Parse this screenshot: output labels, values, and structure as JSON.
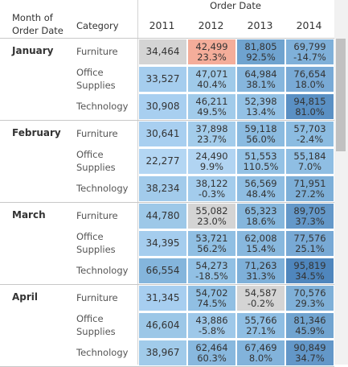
{
  "header": {
    "group_title": "Order Date",
    "month_col": "Month of Order Date",
    "category_col": "Category",
    "years": [
      "2011",
      "2012",
      "2013",
      "2014"
    ]
  },
  "categories": [
    "Furniture",
    "Office Supplies",
    "Technology"
  ],
  "months": [
    {
      "name": "January",
      "rows": [
        [
          {
            "v": "34,464",
            "c": "#d4d4d4"
          },
          {
            "v": "42,499",
            "p": "23.3%",
            "c": "#f4ad9a"
          },
          {
            "v": "81,805",
            "p": "92.5%",
            "c": "#6fa3cf"
          },
          {
            "v": "69,799",
            "p": "-14.7%",
            "c": "#7fb0d9"
          }
        ],
        [
          {
            "v": "33,527",
            "c": "#a5cdee"
          },
          {
            "v": "47,071",
            "p": "40.4%",
            "c": "#9fcae9"
          },
          {
            "v": "64,984",
            "p": "38.1%",
            "c": "#86b6dd"
          },
          {
            "v": "76,654",
            "p": "18.0%",
            "c": "#79aad6"
          }
        ],
        [
          {
            "v": "30,908",
            "c": "#a8cff0"
          },
          {
            "v": "46,211",
            "p": "49.5%",
            "c": "#a1cbea"
          },
          {
            "v": "52,398",
            "p": "13.4%",
            "c": "#93c1e5"
          },
          {
            "v": "94,815",
            "p": "81.0%",
            "c": "#5a90c4"
          }
        ]
      ]
    },
    {
      "name": "February",
      "rows": [
        [
          {
            "v": "30,641",
            "c": "#a8cff0"
          },
          {
            "v": "37,898",
            "p": "23.7%",
            "c": "#a3cceb"
          },
          {
            "v": "59,118",
            "p": "56.0%",
            "c": "#8bbbe0"
          },
          {
            "v": "57,703",
            "p": "-2.4%",
            "c": "#8cbce1"
          }
        ],
        [
          {
            "v": "22,277",
            "c": "#b3d6f3"
          },
          {
            "v": "24,490",
            "p": "9.9%",
            "c": "#b1d4f2"
          },
          {
            "v": "51,553",
            "p": "110.5%",
            "c": "#94c2e5"
          },
          {
            "v": "55,184",
            "p": "7.0%",
            "c": "#8fbee3"
          }
        ],
        [
          {
            "v": "38,234",
            "c": "#a2cbeb"
          },
          {
            "v": "38,122",
            "p": "-0.3%",
            "c": "#a3ccec"
          },
          {
            "v": "56,569",
            "p": "48.4%",
            "c": "#8ebde2"
          },
          {
            "v": "71,951",
            "p": "27.2%",
            "c": "#7dafd8"
          }
        ]
      ]
    },
    {
      "name": "March",
      "rows": [
        [
          {
            "v": "44,780",
            "c": "#9dc8e8"
          },
          {
            "v": "55,082",
            "p": "23.0%",
            "c": "#d4d4d4"
          },
          {
            "v": "65,323",
            "p": "18.6%",
            "c": "#85b6dc"
          },
          {
            "v": "89,705",
            "p": "37.3%",
            "c": "#6498c9"
          }
        ],
        [
          {
            "v": "34,395",
            "c": "#a5cdee"
          },
          {
            "v": "53,721",
            "p": "56.2%",
            "c": "#90bfe3"
          },
          {
            "v": "62,008",
            "p": "15.4%",
            "c": "#88b8de"
          },
          {
            "v": "77,576",
            "p": "25.1%",
            "c": "#78a9d5"
          }
        ],
        [
          {
            "v": "66,554",
            "c": "#84b5dc"
          },
          {
            "v": "54,273",
            "p": "-18.5%",
            "c": "#91c0e4"
          },
          {
            "v": "71,263",
            "p": "31.3%",
            "c": "#7eb0d9"
          },
          {
            "v": "95,819",
            "p": "34.5%",
            "c": "#4f86bd"
          }
        ]
      ]
    },
    {
      "name": "April",
      "rows": [
        [
          {
            "v": "31,345",
            "c": "#a7cef0"
          },
          {
            "v": "54,702",
            "p": "74.5%",
            "c": "#90bfe3"
          },
          {
            "v": "54,587",
            "p": "-0.2%",
            "c": "#d4d4d4"
          },
          {
            "v": "70,576",
            "p": "29.3%",
            "c": "#7fb0d8"
          }
        ],
        [
          {
            "v": "46,604",
            "c": "#9cc7e7"
          },
          {
            "v": "43,886",
            "p": "-5.8%",
            "c": "#9ec8e9"
          },
          {
            "v": "55,766",
            "p": "27.1%",
            "c": "#8fbee3"
          },
          {
            "v": "81,346",
            "p": "45.9%",
            "c": "#71a4d0"
          }
        ],
        [
          {
            "v": "38,967",
            "c": "#a1cbea"
          },
          {
            "v": "62,464",
            "p": "60.3%",
            "c": "#88b8de"
          },
          {
            "v": "67,469",
            "p": "8.0%",
            "c": "#82b3db"
          },
          {
            "v": "90,849",
            "p": "34.7%",
            "c": "#6397c8"
          }
        ]
      ]
    }
  ]
}
